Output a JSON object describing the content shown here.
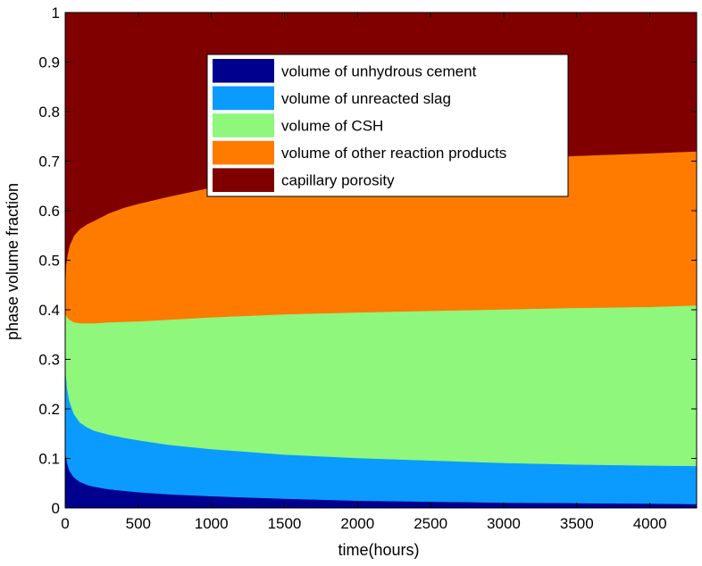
{
  "chart_data": {
    "type": "area",
    "stacked": true,
    "xlabel": "time(hours)",
    "ylabel": "phase volume fraction",
    "xlim": [
      0,
      4320
    ],
    "ylim": [
      0,
      1
    ],
    "xticks": [
      0,
      500,
      1000,
      1500,
      2000,
      2500,
      3000,
      3500,
      4000
    ],
    "yticks": [
      0,
      0.1,
      0.2,
      0.3,
      0.4,
      0.5,
      0.6,
      0.7,
      0.8,
      0.9,
      1
    ],
    "grid": false,
    "legend_position": "top-center",
    "x": [
      0,
      5,
      15,
      30,
      60,
      100,
      150,
      200,
      300,
      400,
      500,
      700,
      1000,
      1500,
      2000,
      2500,
      3000,
      3500,
      4000,
      4320
    ],
    "series": [
      {
        "name": "volume of unhydrous cement",
        "color": "#00008f",
        "values": [
          0.135,
          0.105,
          0.09,
          0.075,
          0.062,
          0.053,
          0.047,
          0.043,
          0.038,
          0.035,
          0.032,
          0.028,
          0.024,
          0.019,
          0.015,
          0.013,
          0.011,
          0.01,
          0.009,
          0.008
        ]
      },
      {
        "name": "volume of unreacted slag",
        "color": "#0b9bff",
        "values": [
          0.205,
          0.165,
          0.15,
          0.14,
          0.128,
          0.12,
          0.116,
          0.113,
          0.11,
          0.107,
          0.105,
          0.1,
          0.095,
          0.089,
          0.086,
          0.083,
          0.08,
          0.078,
          0.077,
          0.077
        ]
      },
      {
        "name": "volume of CSH",
        "color": "#8ef77c",
        "values": [
          0.05,
          0.12,
          0.145,
          0.165,
          0.185,
          0.2,
          0.21,
          0.217,
          0.227,
          0.234,
          0.24,
          0.252,
          0.266,
          0.283,
          0.294,
          0.302,
          0.31,
          0.316,
          0.32,
          0.324
        ]
      },
      {
        "name": "volume of other reaction products",
        "color": "#ff7b00",
        "values": [
          0.06,
          0.1,
          0.125,
          0.15,
          0.175,
          0.19,
          0.2,
          0.207,
          0.22,
          0.23,
          0.237,
          0.248,
          0.262,
          0.278,
          0.29,
          0.297,
          0.303,
          0.307,
          0.31,
          0.311
        ]
      },
      {
        "name": "capillary porosity",
        "color": "#800000",
        "values": [
          0.55,
          0.51,
          0.49,
          0.47,
          0.45,
          0.437,
          0.427,
          0.42,
          0.405,
          0.394,
          0.386,
          0.372,
          0.353,
          0.331,
          0.315,
          0.305,
          0.296,
          0.289,
          0.284,
          0.28
        ]
      }
    ]
  }
}
